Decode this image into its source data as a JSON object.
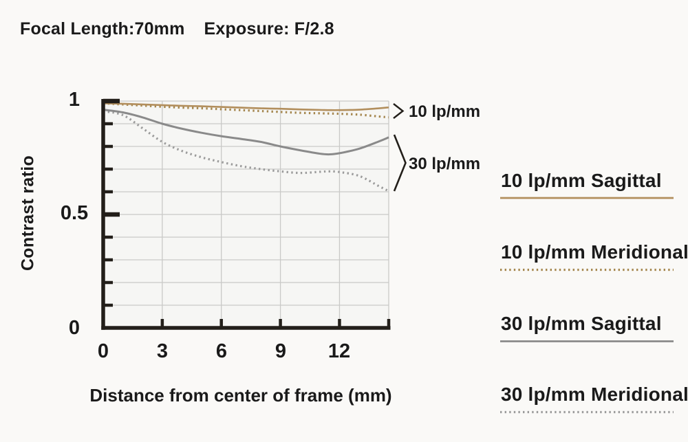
{
  "header": {
    "focal_length": "Focal Length:70mm",
    "exposure": "Exposure: F/2.8"
  },
  "chart_data": {
    "type": "line",
    "xlabel": "Distance from center of frame (mm)",
    "ylabel": "Contrast ratio",
    "xlim": [
      0,
      14.5
    ],
    "ylim": [
      0,
      1
    ],
    "grid": true,
    "x_ticks": [
      3,
      6,
      9,
      12,
      14.5
    ],
    "x_tick_labels": [
      "0",
      "3",
      "6",
      "9",
      "12"
    ],
    "x_tick_label_positions": [
      0,
      3,
      6,
      9,
      12
    ],
    "y_tick_labels": [
      "1",
      "0.5",
      "0"
    ],
    "y_major_ticks": [
      0,
      0.5,
      1
    ],
    "y_minor_step": 0.1,
    "x": [
      0,
      1,
      2,
      3,
      4,
      5,
      6,
      7,
      8,
      9,
      10,
      11,
      11.5,
      12,
      13,
      14,
      14.5
    ],
    "series": [
      {
        "name": "10 lp/mm Sagittal",
        "style": "solid",
        "color": "#b28e5c",
        "values": [
          0.99,
          0.988,
          0.985,
          0.982,
          0.979,
          0.977,
          0.974,
          0.971,
          0.968,
          0.966,
          0.963,
          0.961,
          0.96,
          0.96,
          0.962,
          0.968,
          0.972
        ]
      },
      {
        "name": "10 lp/mm Meridional",
        "style": "dotted",
        "color": "#a5874f",
        "values": [
          0.99,
          0.985,
          0.98,
          0.975,
          0.971,
          0.968,
          0.964,
          0.96,
          0.956,
          0.952,
          0.948,
          0.946,
          0.945,
          0.944,
          0.94,
          0.932,
          0.928
        ]
      },
      {
        "name": "30 lp/mm Sagittal",
        "style": "solid",
        "color": "#8a8a8a",
        "values": [
          0.962,
          0.95,
          0.928,
          0.9,
          0.878,
          0.86,
          0.845,
          0.833,
          0.82,
          0.8,
          0.783,
          0.768,
          0.765,
          0.77,
          0.79,
          0.822,
          0.84
        ]
      },
      {
        "name": "30 lp/mm Meridional",
        "style": "dotted",
        "color": "#9b9b9b",
        "values": [
          0.955,
          0.938,
          0.88,
          0.82,
          0.78,
          0.752,
          0.731,
          0.713,
          0.7,
          0.69,
          0.683,
          0.688,
          0.69,
          0.687,
          0.67,
          0.625,
          0.603
        ]
      }
    ],
    "annotations": [
      {
        "label": "10 lp/mm"
      },
      {
        "label": "30 lp/mm"
      }
    ],
    "legend_position": "right"
  },
  "legend": {
    "items": [
      {
        "label": "10 lp/mm Sagittal",
        "style": "solid",
        "color": "#b28e5c"
      },
      {
        "label": "10 lp/mm Meridional",
        "style": "dotted",
        "color": "#a5874f"
      },
      {
        "label": "30 lp/mm Sagittal",
        "style": "solid",
        "color": "#8a8a8a"
      },
      {
        "label": "30 lp/mm Meridional",
        "style": "dotted",
        "color": "#9b9b9b"
      }
    ]
  },
  "colors": {
    "background": "#faf9f7",
    "plot_background": "#f6f6f4",
    "grid": "#c9c9c7",
    "axis": "#231f1a",
    "text": "#1a1a1a"
  }
}
